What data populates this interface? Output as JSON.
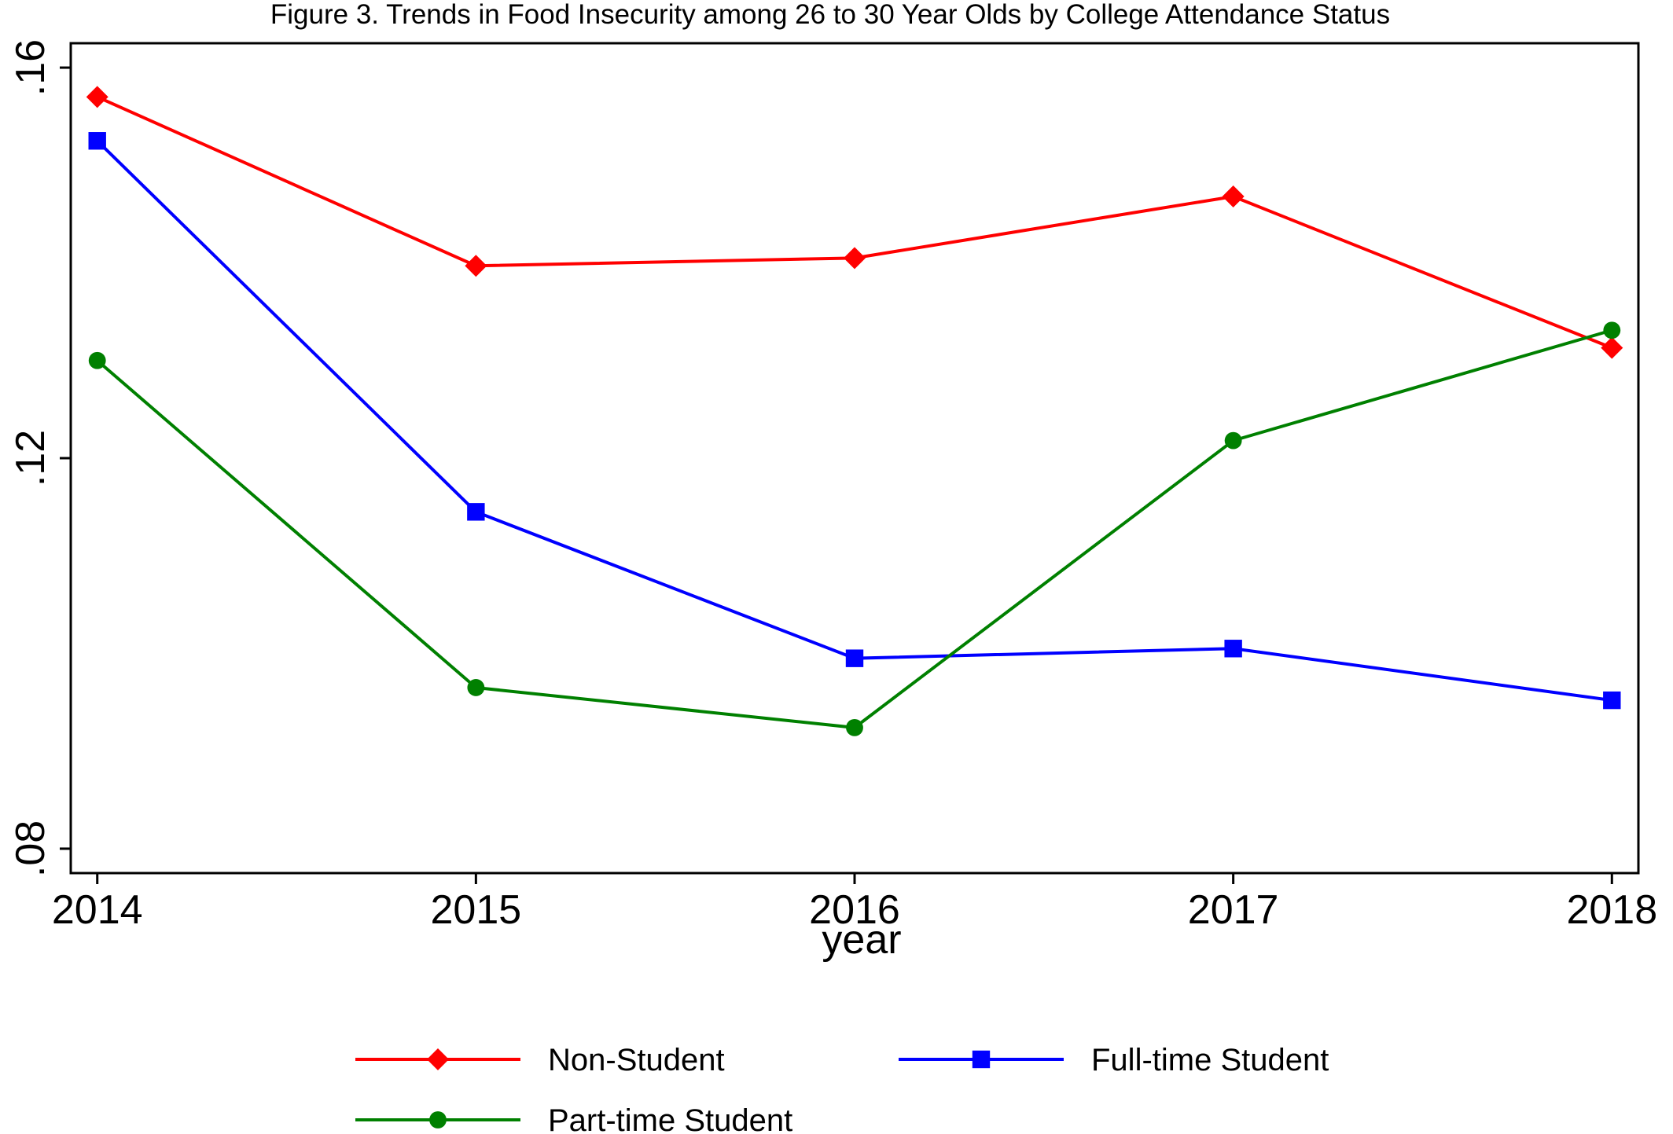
{
  "chart_data": {
    "type": "line",
    "title": "Figure 3.  Trends in Food Insecurity among 26 to 30 Year Olds by College Attendance Status",
    "xlabel": "year",
    "ylabel": "",
    "x": [
      2014,
      2015,
      2016,
      2017,
      2018
    ],
    "x_tick_labels": [
      "2014",
      "2015",
      "2016",
      "2017",
      "2018"
    ],
    "y_ticks": [
      0.08,
      0.12,
      0.16
    ],
    "y_tick_labels": [
      ".08",
      ".12",
      ".16"
    ],
    "ylim": [
      0.0775,
      0.1625
    ],
    "xlim": [
      2013.93,
      2018.07
    ],
    "grid": false,
    "legend_position": "bottom",
    "series": [
      {
        "name": "Non-Student",
        "color": "#ff0000",
        "marker": "diamond",
        "values": [
          0.157,
          0.1397,
          0.1405,
          0.1468,
          0.1313
        ]
      },
      {
        "name": "Full-time Student",
        "color": "#0000ff",
        "marker": "square",
        "values": [
          0.1525,
          0.1145,
          0.0995,
          0.1005,
          0.0952
        ]
      },
      {
        "name": "Part-time Student",
        "color": "#008000",
        "marker": "circle",
        "values": [
          0.13,
          0.0965,
          0.0924,
          0.1218,
          0.1331
        ]
      }
    ]
  }
}
